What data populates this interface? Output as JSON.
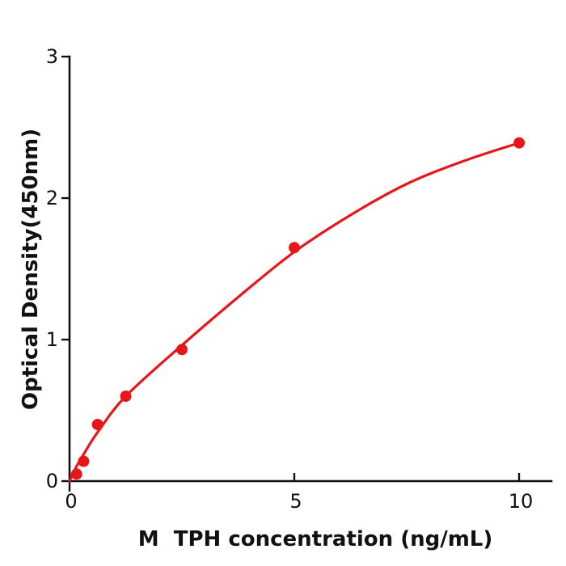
{
  "chart_data": {
    "type": "scatter",
    "title": "",
    "xlabel": "M  TPH concentration (ng/mL)",
    "ylabel": "Optical Density(450nm)",
    "xlim": [
      0,
      10.72
    ],
    "ylim": [
      0,
      3
    ],
    "xticks": [
      0,
      5,
      10
    ],
    "yticks": [
      0,
      1,
      2,
      3
    ],
    "grid": false,
    "legend": "none",
    "series": [
      {
        "name": "standard-points",
        "kind": "scatter",
        "points": [
          [
            0.156,
            0.05
          ],
          [
            0.313,
            0.14
          ],
          [
            0.625,
            0.4
          ],
          [
            1.25,
            0.6
          ],
          [
            2.5,
            0.93
          ],
          [
            5,
            1.65
          ],
          [
            10,
            2.39
          ]
        ]
      },
      {
        "name": "fitted-curve",
        "kind": "line",
        "points": [
          [
            0,
            0.0
          ],
          [
            0.156,
            0.105
          ],
          [
            0.313,
            0.19
          ],
          [
            0.625,
            0.345
          ],
          [
            1.25,
            0.6
          ],
          [
            2.5,
            0.96
          ],
          [
            3.75,
            1.3
          ],
          [
            5,
            1.62
          ],
          [
            6.25,
            1.88
          ],
          [
            7.5,
            2.1
          ],
          [
            8.75,
            2.26
          ],
          [
            10,
            2.39
          ]
        ]
      }
    ],
    "colors": {
      "point_color": "#e8151a",
      "line_color": "#e8151a",
      "axis_color": "#111111",
      "background": "#ffffff"
    },
    "marker_radius": 7,
    "line_width": 3.2
  }
}
